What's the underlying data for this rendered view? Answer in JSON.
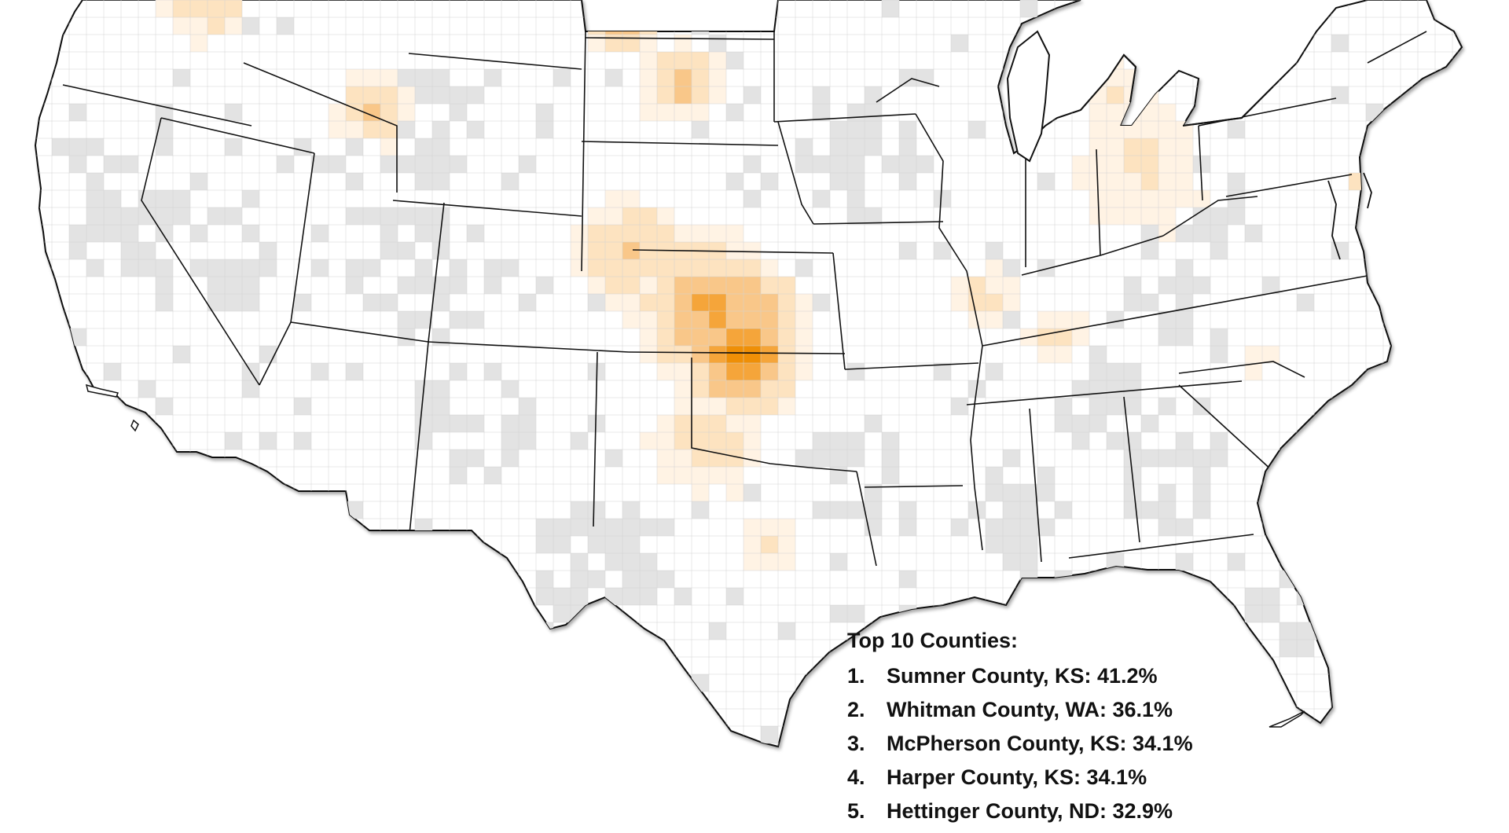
{
  "legend": {
    "title": "Top 10 Counties:",
    "items": [
      {
        "rank": "1.",
        "text": "Sumner County, KS: 41.2%"
      },
      {
        "rank": "2.",
        "text": "Whitman County, WA: 36.1%"
      },
      {
        "rank": "3.",
        "text": "McPherson County, KS: 34.1%"
      },
      {
        "rank": "4.",
        "text": "Harper County, KS: 34.1%"
      },
      {
        "rank": "5.",
        "text": "Hettinger County, ND: 32.9%"
      }
    ]
  },
  "colors": {
    "background": "#ffffff",
    "land": "#ffffff",
    "no_data": "#e3e3e3",
    "outline": "#111111",
    "shade_very_light": "#fff3e4",
    "shade_light": "#fde3c0",
    "shade_medium": "#f9c789",
    "shade_strong": "#f5a53a",
    "shade_max": "#ef8f06"
  }
}
